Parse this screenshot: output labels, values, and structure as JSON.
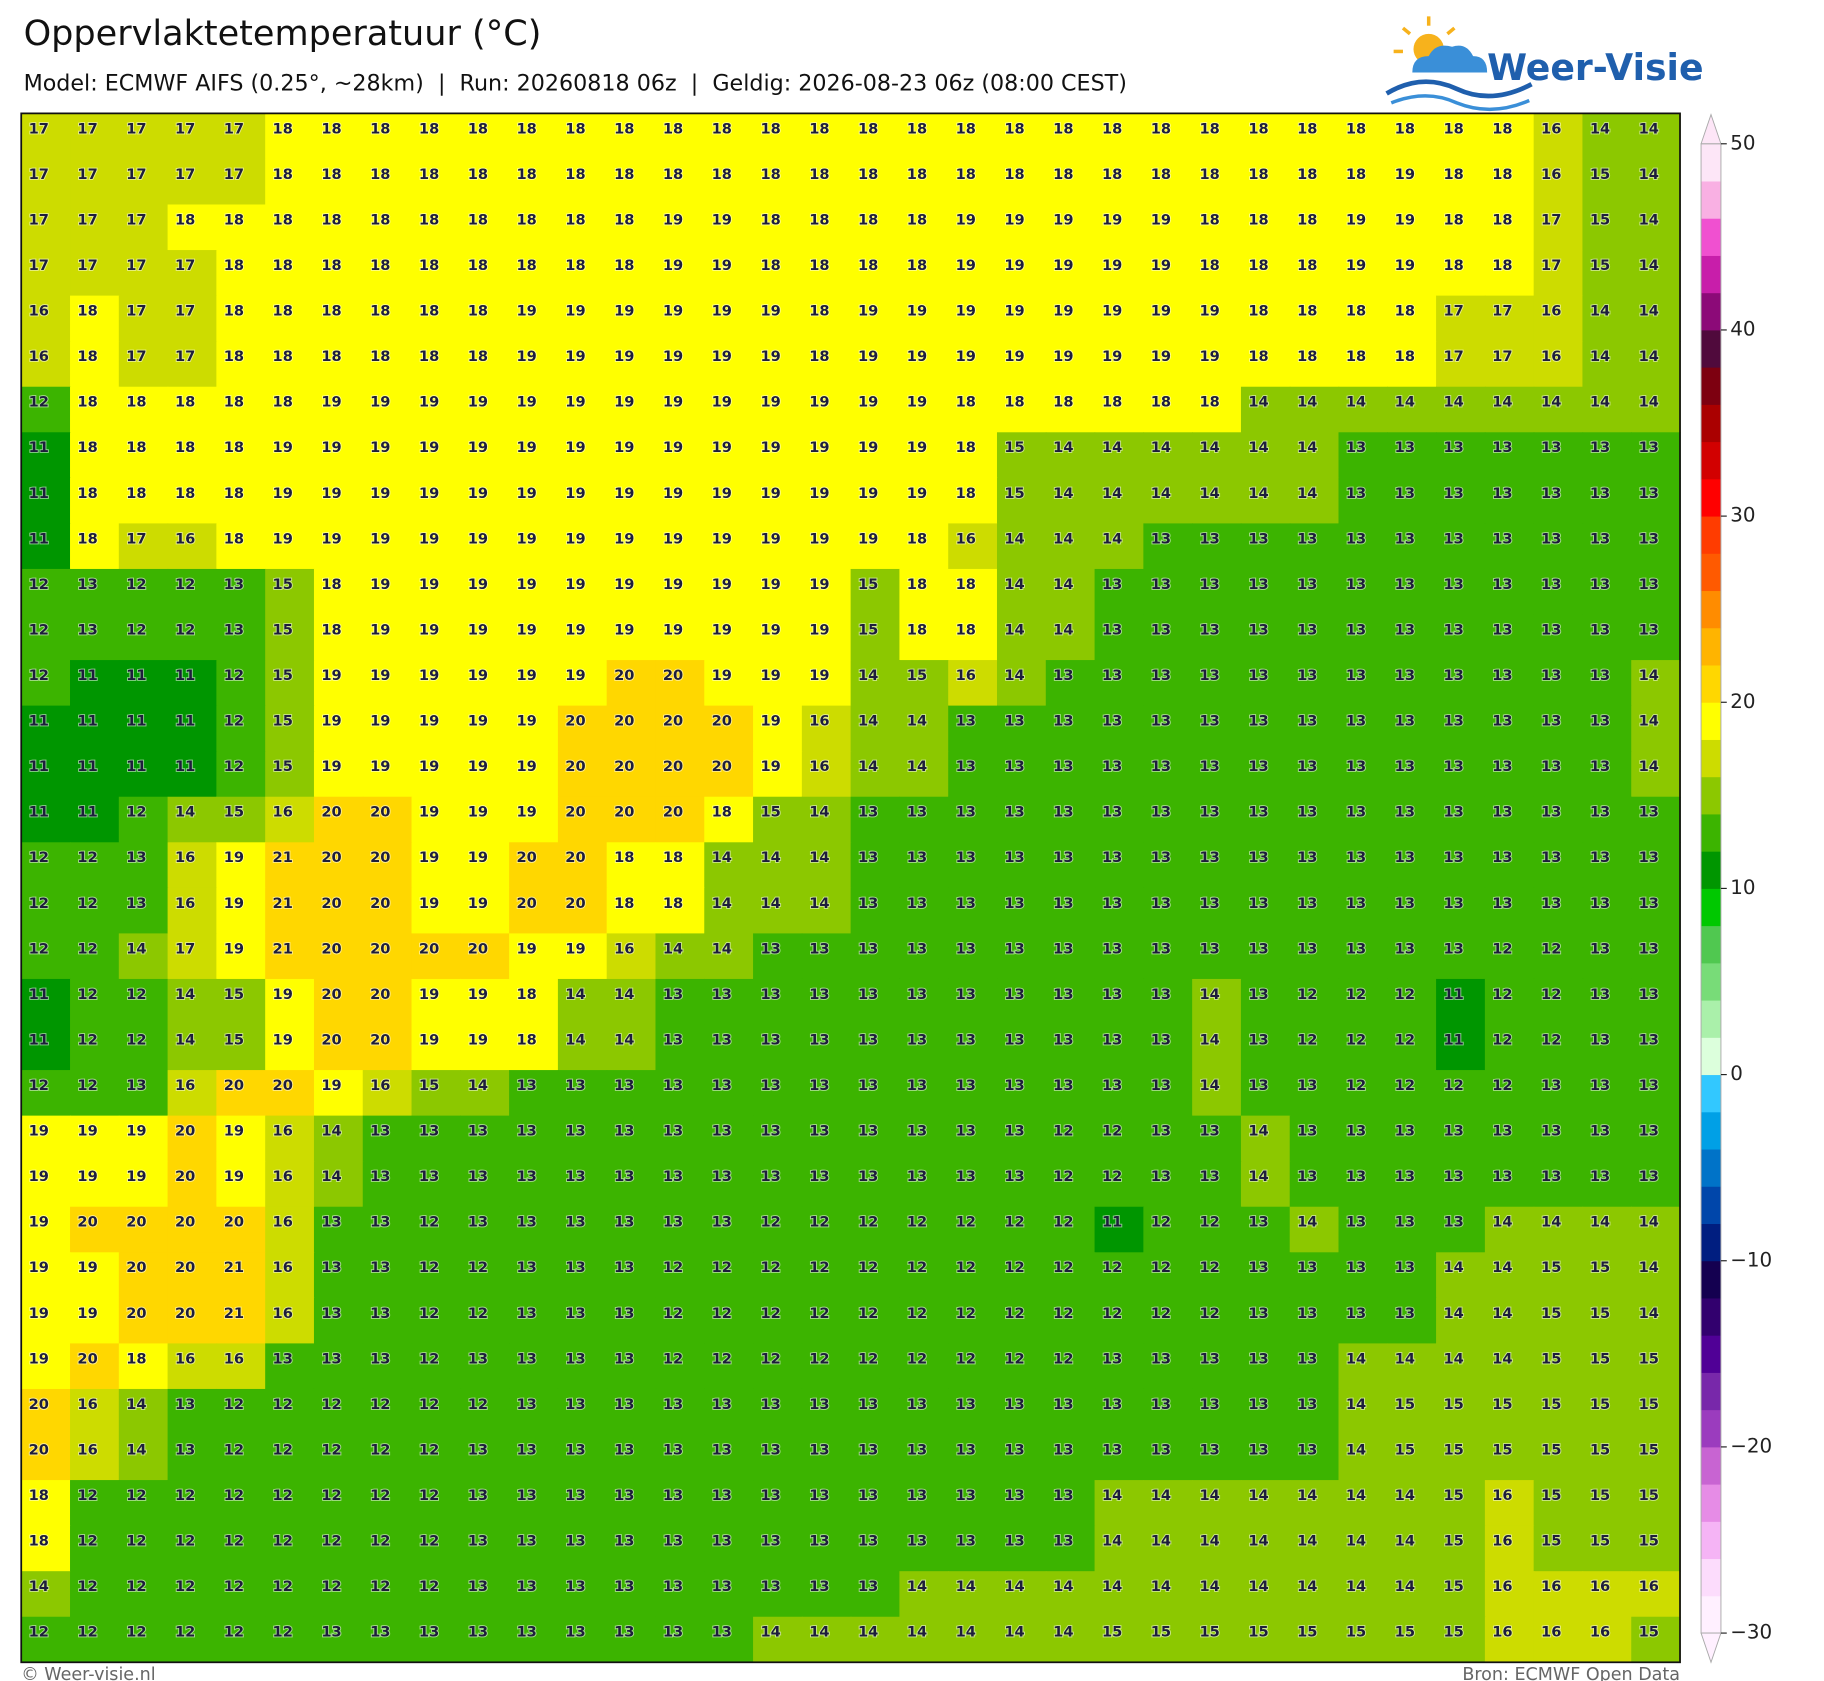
{
  "header": {
    "title": "Oppervlaktetemperatuur (°C)",
    "subtitle": "Model: ECMWF AIFS (0.25°, ~28km)  |  Run: 20260818 06z  |  Geldig: 2026-08-23 06z (08:00 CEST)"
  },
  "logo": {
    "text": "Weer-Visie"
  },
  "grid": {
    "rows": [
      [
        17,
        17,
        17,
        17,
        17,
        18,
        18,
        18,
        18,
        18,
        18,
        18,
        18,
        18,
        18,
        18,
        18,
        18,
        18,
        18,
        18,
        18,
        18,
        18,
        18,
        18,
        18,
        18,
        18,
        18,
        18,
        16,
        14,
        14
      ],
      [
        17,
        17,
        17,
        17,
        17,
        18,
        18,
        18,
        18,
        18,
        18,
        18,
        18,
        18,
        18,
        18,
        18,
        18,
        18,
        18,
        18,
        18,
        18,
        18,
        18,
        18,
        18,
        18,
        19,
        18,
        18,
        16,
        15,
        14
      ],
      [
        17,
        17,
        17,
        18,
        18,
        18,
        18,
        18,
        18,
        18,
        18,
        18,
        18,
        19,
        19,
        18,
        18,
        18,
        18,
        19,
        19,
        19,
        19,
        19,
        18,
        18,
        18,
        19,
        19,
        18,
        18,
        17,
        15,
        14
      ],
      [
        17,
        17,
        17,
        17,
        18,
        18,
        18,
        18,
        18,
        18,
        18,
        18,
        18,
        19,
        19,
        18,
        18,
        18,
        18,
        19,
        19,
        19,
        19,
        19,
        18,
        18,
        18,
        19,
        19,
        18,
        18,
        17,
        15,
        14
      ],
      [
        16,
        18,
        17,
        17,
        18,
        18,
        18,
        18,
        18,
        18,
        19,
        19,
        19,
        19,
        19,
        19,
        18,
        19,
        19,
        19,
        19,
        19,
        19,
        19,
        19,
        18,
        18,
        18,
        18,
        17,
        17,
        16,
        14,
        14
      ],
      [
        16,
        18,
        17,
        17,
        18,
        18,
        18,
        18,
        18,
        18,
        19,
        19,
        19,
        19,
        19,
        19,
        18,
        19,
        19,
        19,
        19,
        19,
        19,
        19,
        19,
        18,
        18,
        18,
        18,
        17,
        17,
        16,
        14,
        14
      ],
      [
        12,
        18,
        18,
        18,
        18,
        18,
        19,
        19,
        19,
        19,
        19,
        19,
        19,
        19,
        19,
        19,
        19,
        19,
        19,
        18,
        18,
        18,
        18,
        18,
        18,
        14,
        14,
        14,
        14,
        14,
        14,
        14,
        14,
        14
      ],
      [
        11,
        18,
        18,
        18,
        18,
        19,
        19,
        19,
        19,
        19,
        19,
        19,
        19,
        19,
        19,
        19,
        19,
        19,
        19,
        18,
        15,
        14,
        14,
        14,
        14,
        14,
        14,
        13,
        13,
        13,
        13,
        13,
        13,
        13
      ],
      [
        11,
        18,
        18,
        18,
        18,
        19,
        19,
        19,
        19,
        19,
        19,
        19,
        19,
        19,
        19,
        19,
        19,
        19,
        19,
        18,
        15,
        14,
        14,
        14,
        14,
        14,
        14,
        13,
        13,
        13,
        13,
        13,
        13,
        13
      ],
      [
        11,
        18,
        17,
        16,
        18,
        19,
        19,
        19,
        19,
        19,
        19,
        19,
        19,
        19,
        19,
        19,
        19,
        19,
        18,
        16,
        14,
        14,
        14,
        13,
        13,
        13,
        13,
        13,
        13,
        13,
        13,
        13,
        13,
        13
      ],
      [
        12,
        13,
        12,
        12,
        13,
        15,
        18,
        19,
        19,
        19,
        19,
        19,
        19,
        19,
        19,
        19,
        19,
        15,
        18,
        18,
        14,
        14,
        13,
        13,
        13,
        13,
        13,
        13,
        13,
        13,
        13,
        13,
        13,
        13
      ],
      [
        12,
        13,
        12,
        12,
        13,
        15,
        18,
        19,
        19,
        19,
        19,
        19,
        19,
        19,
        19,
        19,
        19,
        15,
        18,
        18,
        14,
        14,
        13,
        13,
        13,
        13,
        13,
        13,
        13,
        13,
        13,
        13,
        13,
        13
      ],
      [
        12,
        11,
        11,
        11,
        12,
        15,
        19,
        19,
        19,
        19,
        19,
        19,
        20,
        20,
        19,
        19,
        19,
        14,
        15,
        16,
        14,
        13,
        13,
        13,
        13,
        13,
        13,
        13,
        13,
        13,
        13,
        13,
        13,
        14
      ],
      [
        11,
        11,
        11,
        11,
        12,
        15,
        19,
        19,
        19,
        19,
        19,
        20,
        20,
        20,
        20,
        19,
        16,
        14,
        14,
        13,
        13,
        13,
        13,
        13,
        13,
        13,
        13,
        13,
        13,
        13,
        13,
        13,
        13,
        14
      ],
      [
        11,
        11,
        11,
        11,
        12,
        15,
        19,
        19,
        19,
        19,
        19,
        20,
        20,
        20,
        20,
        19,
        16,
        14,
        14,
        13,
        13,
        13,
        13,
        13,
        13,
        13,
        13,
        13,
        13,
        13,
        13,
        13,
        13,
        14
      ],
      [
        11,
        11,
        12,
        14,
        15,
        16,
        20,
        20,
        19,
        19,
        19,
        20,
        20,
        20,
        18,
        15,
        14,
        13,
        13,
        13,
        13,
        13,
        13,
        13,
        13,
        13,
        13,
        13,
        13,
        13,
        13,
        13,
        13,
        13
      ],
      [
        12,
        12,
        13,
        16,
        19,
        21,
        20,
        20,
        19,
        19,
        20,
        20,
        18,
        18,
        14,
        14,
        14,
        13,
        13,
        13,
        13,
        13,
        13,
        13,
        13,
        13,
        13,
        13,
        13,
        13,
        13,
        13,
        13,
        13
      ],
      [
        12,
        12,
        13,
        16,
        19,
        21,
        20,
        20,
        19,
        19,
        20,
        20,
        18,
        18,
        14,
        14,
        14,
        13,
        13,
        13,
        13,
        13,
        13,
        13,
        13,
        13,
        13,
        13,
        13,
        13,
        13,
        13,
        13,
        13
      ],
      [
        12,
        12,
        14,
        17,
        19,
        21,
        20,
        20,
        20,
        20,
        19,
        19,
        16,
        14,
        14,
        13,
        13,
        13,
        13,
        13,
        13,
        13,
        13,
        13,
        13,
        13,
        13,
        13,
        13,
        13,
        12,
        12,
        13,
        13
      ],
      [
        11,
        12,
        12,
        14,
        15,
        19,
        20,
        20,
        19,
        19,
        18,
        14,
        14,
        13,
        13,
        13,
        13,
        13,
        13,
        13,
        13,
        13,
        13,
        13,
        14,
        13,
        12,
        12,
        12,
        11,
        12,
        12,
        13,
        13
      ],
      [
        11,
        12,
        12,
        14,
        15,
        19,
        20,
        20,
        19,
        19,
        18,
        14,
        14,
        13,
        13,
        13,
        13,
        13,
        13,
        13,
        13,
        13,
        13,
        13,
        14,
        13,
        12,
        12,
        12,
        11,
        12,
        12,
        13,
        13
      ],
      [
        12,
        12,
        13,
        16,
        20,
        20,
        19,
        16,
        15,
        14,
        13,
        13,
        13,
        13,
        13,
        13,
        13,
        13,
        13,
        13,
        13,
        13,
        13,
        13,
        14,
        13,
        13,
        12,
        12,
        12,
        12,
        13,
        13,
        13
      ],
      [
        19,
        19,
        19,
        20,
        19,
        16,
        14,
        13,
        13,
        13,
        13,
        13,
        13,
        13,
        13,
        13,
        13,
        13,
        13,
        13,
        13,
        12,
        12,
        13,
        13,
        14,
        13,
        13,
        13,
        13,
        13,
        13,
        13,
        13
      ],
      [
        19,
        19,
        19,
        20,
        19,
        16,
        14,
        13,
        13,
        13,
        13,
        13,
        13,
        13,
        13,
        13,
        13,
        13,
        13,
        13,
        13,
        12,
        12,
        13,
        13,
        14,
        13,
        13,
        13,
        13,
        13,
        13,
        13,
        13
      ],
      [
        19,
        20,
        20,
        20,
        20,
        16,
        13,
        13,
        12,
        13,
        13,
        13,
        13,
        13,
        13,
        12,
        12,
        12,
        12,
        12,
        12,
        12,
        11,
        12,
        12,
        13,
        14,
        13,
        13,
        13,
        14,
        14,
        14,
        14
      ],
      [
        19,
        19,
        20,
        20,
        21,
        16,
        13,
        13,
        12,
        12,
        13,
        13,
        13,
        12,
        12,
        12,
        12,
        12,
        12,
        12,
        12,
        12,
        12,
        12,
        12,
        13,
        13,
        13,
        13,
        14,
        14,
        15,
        15,
        14
      ],
      [
        19,
        19,
        20,
        20,
        21,
        16,
        13,
        13,
        12,
        12,
        13,
        13,
        13,
        12,
        12,
        12,
        12,
        12,
        12,
        12,
        12,
        12,
        12,
        12,
        12,
        13,
        13,
        13,
        13,
        14,
        14,
        15,
        15,
        14
      ],
      [
        19,
        20,
        18,
        16,
        16,
        13,
        13,
        13,
        12,
        13,
        13,
        13,
        13,
        12,
        12,
        12,
        12,
        12,
        12,
        12,
        12,
        12,
        13,
        13,
        13,
        13,
        13,
        14,
        14,
        14,
        14,
        15,
        15,
        15
      ],
      [
        20,
        16,
        14,
        13,
        12,
        12,
        12,
        12,
        12,
        12,
        13,
        13,
        13,
        13,
        13,
        13,
        13,
        13,
        13,
        13,
        13,
        13,
        13,
        13,
        13,
        13,
        13,
        14,
        15,
        15,
        15,
        15,
        15,
        15
      ],
      [
        20,
        16,
        14,
        13,
        12,
        12,
        12,
        12,
        12,
        13,
        13,
        13,
        13,
        13,
        13,
        13,
        13,
        13,
        13,
        13,
        13,
        13,
        13,
        13,
        13,
        13,
        13,
        14,
        15,
        15,
        15,
        15,
        15,
        15
      ],
      [
        18,
        12,
        12,
        12,
        12,
        12,
        12,
        12,
        12,
        13,
        13,
        13,
        13,
        13,
        13,
        13,
        13,
        13,
        13,
        13,
        13,
        13,
        14,
        14,
        14,
        14,
        14,
        14,
        14,
        15,
        16,
        15,
        15,
        15
      ],
      [
        18,
        12,
        12,
        12,
        12,
        12,
        12,
        12,
        12,
        13,
        13,
        13,
        13,
        13,
        13,
        13,
        13,
        13,
        13,
        13,
        13,
        13,
        14,
        14,
        14,
        14,
        14,
        14,
        14,
        15,
        16,
        15,
        15,
        15
      ],
      [
        14,
        12,
        12,
        12,
        12,
        12,
        12,
        12,
        12,
        13,
        13,
        13,
        13,
        13,
        13,
        13,
        13,
        13,
        14,
        14,
        14,
        14,
        14,
        14,
        14,
        14,
        14,
        14,
        14,
        15,
        16,
        16,
        16,
        16
      ],
      [
        12,
        12,
        12,
        12,
        12,
        12,
        13,
        13,
        13,
        13,
        13,
        13,
        13,
        13,
        13,
        14,
        14,
        14,
        14,
        14,
        14,
        14,
        15,
        15,
        15,
        15,
        15,
        15,
        15,
        15,
        16,
        16,
        16,
        15
      ]
    ]
  },
  "colorbar": {
    "lim": [
      -30,
      50
    ],
    "colors": [
      "#fff0ff",
      "#fcdcfc",
      "#f5b4f5",
      "#e68ce6",
      "#c864d2",
      "#9b3cbe",
      "#7828aa",
      "#500096",
      "#32006e",
      "#140050",
      "#001e80",
      "#0046aa",
      "#0073c8",
      "#00a0e6",
      "#32c8ff",
      "#dcffdc",
      "#aaf0aa",
      "#78dc78",
      "#50c850",
      "#00c800",
      "#009600",
      "#3cb400",
      "#8cc800",
      "#cddc00",
      "#ffff00",
      "#ffd700",
      "#ffb400",
      "#ff8c00",
      "#ff5a00",
      "#ff3c00",
      "#ff0000",
      "#d20000",
      "#aa0000",
      "#7d0010",
      "#500a3c",
      "#8c0a78",
      "#c81eaa",
      "#f050d0",
      "#f9b0e3",
      "#fde6f7"
    ],
    "ticks": [
      50,
      40,
      30,
      20,
      10,
      0,
      {
        "value": -10,
        "label": "−10"
      },
      {
        "value": -20,
        "label": "−20"
      },
      {
        "value": -30,
        "label": "−30"
      }
    ]
  },
  "footer": {
    "left": "© Weer-visie.nl",
    "right": "Bron: ECMWF Open Data"
  }
}
